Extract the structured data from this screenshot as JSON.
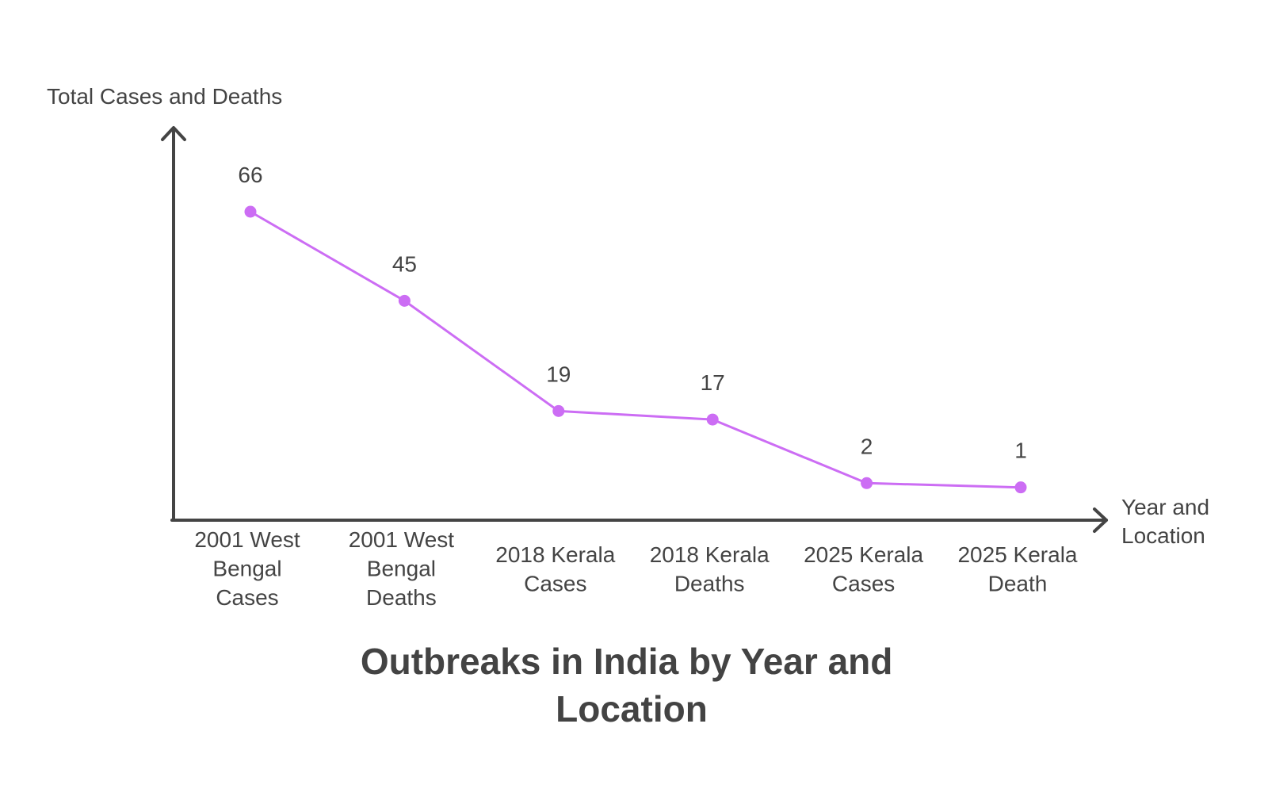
{
  "chart_data": {
    "type": "line",
    "title_lines": [
      "Outbreaks in India by Year and",
      "Location"
    ],
    "xlabel_lines": [
      "Year and",
      "Location"
    ],
    "ylabel": "Total Cases and Deaths",
    "categories": [
      [
        "2001 West",
        "Bengal",
        "Cases"
      ],
      [
        "2001 West",
        "Bengal",
        "Deaths"
      ],
      [
        "2018 Kerala",
        "Cases"
      ],
      [
        "2018 Kerala",
        "Deaths"
      ],
      [
        "2025 Kerala",
        "Cases"
      ],
      [
        "2025 Kerala",
        "Death"
      ]
    ],
    "values": [
      66,
      45,
      19,
      17,
      2,
      1
    ],
    "ylim": [
      0,
      75
    ],
    "grid": false,
    "legend": "none",
    "colors": {
      "series": "#cc6df4",
      "axis": "#444444",
      "text": "#444444"
    }
  }
}
